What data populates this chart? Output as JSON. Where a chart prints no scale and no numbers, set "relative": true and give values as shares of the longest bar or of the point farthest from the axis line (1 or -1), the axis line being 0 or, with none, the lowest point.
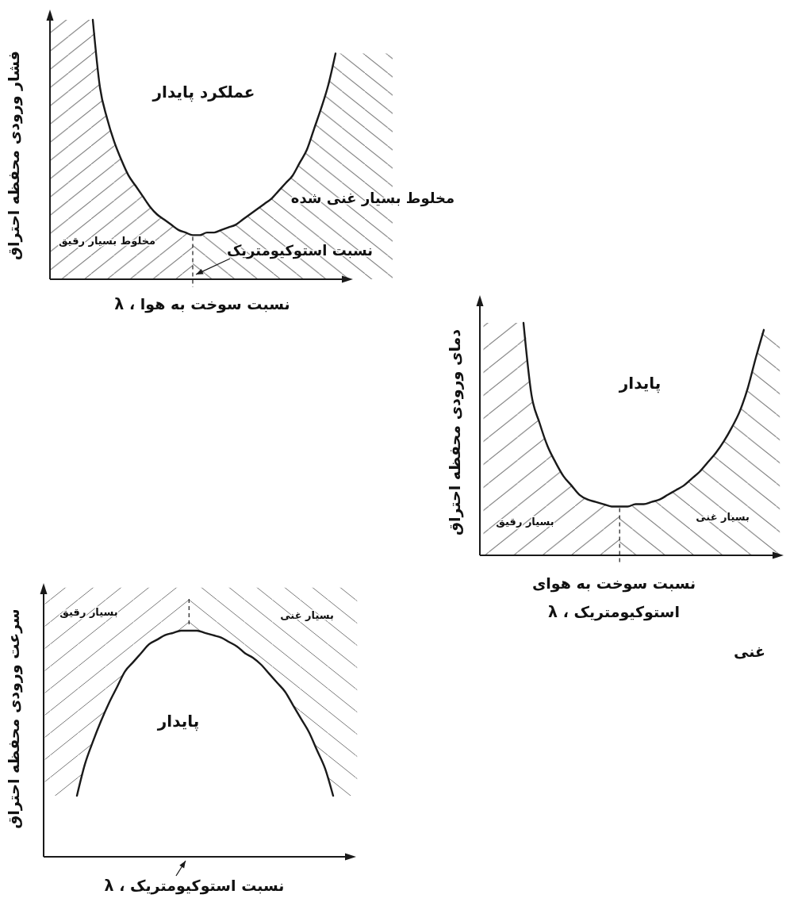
{
  "chart_data": [
    {
      "type": "line",
      "relative": true,
      "ylabel": "فشار ورودی محفظه احتراق",
      "xlabel": "نسبت سوخت به هوا ، λ",
      "annotations": [
        "عملکرد پایدار",
        "مخلوط بسیار غنی شده",
        "مخلوط بسیار رقیق",
        "نسبت استوکیومتریک"
      ],
      "categories": [
        null,
        null,
        null,
        null,
        null,
        null,
        null,
        null,
        null,
        null,
        null,
        null,
        null,
        null,
        null,
        null,
        null,
        null,
        null,
        null,
        null,
        null,
        null,
        null,
        null,
        null,
        null,
        null,
        null,
        null,
        null,
        null,
        null,
        null,
        null,
        null,
        null,
        null,
        null,
        null,
        null,
        null,
        null,
        null,
        null,
        null,
        null,
        null,
        null
      ],
      "series": [
        {
          "type": "area",
          "color": "#7a7a7a",
          "values": [
            1,
            1,
            1,
            1,
            1,
            1,
            1,
            0.74,
            0.62,
            0.53,
            0.46,
            0.4,
            0.36,
            0.32,
            0.28,
            0.25,
            0.23,
            0.21,
            0.19,
            0.18,
            0.17,
            null,
            null,
            null,
            null,
            null,
            null,
            null,
            null,
            null,
            null,
            null,
            null,
            null,
            null,
            null,
            null,
            null,
            null,
            null,
            null,
            null,
            null,
            null,
            null,
            null,
            null,
            null,
            null
          ]
        },
        {
          "type": "area",
          "color": "#7a7a7a",
          "values": [
            null,
            null,
            null,
            null,
            null,
            null,
            null,
            null,
            null,
            null,
            null,
            null,
            null,
            null,
            null,
            null,
            null,
            null,
            null,
            null,
            0.17,
            0.17,
            0.18,
            0.18,
            0.19,
            0.2,
            0.21,
            0.23,
            0.25,
            0.27,
            0.29,
            0.31,
            0.34,
            0.37,
            0.4,
            0.45,
            0.5,
            0.58,
            0.66,
            0.75,
            0.87,
            0.87,
            0.87,
            0.87,
            0.87,
            0.87,
            0.87,
            0.87,
            0.87
          ]
        },
        {
          "color": "#1a1a1a",
          "values": [
            null,
            null,
            null,
            null,
            null,
            null,
            1,
            0.74,
            0.62,
            0.53,
            0.46,
            0.4,
            0.36,
            0.32,
            0.28,
            0.25,
            0.23,
            0.21,
            0.19,
            0.18,
            0.17,
            0.17,
            0.18,
            0.18,
            0.19,
            0.2,
            0.21,
            0.23,
            0.25,
            0.27,
            0.29,
            0.31,
            0.34,
            0.37,
            0.4,
            0.45,
            0.5,
            0.58,
            0.66,
            0.75,
            0.87,
            null,
            null,
            null,
            null,
            null,
            null,
            null,
            null
          ]
        }
      ]
    },
    {
      "type": "line",
      "relative": true,
      "ylabel": "دمای ورودی محفظه احتراق",
      "xlabel": "نسبت سوخت به هوای\nاستوکیومتریک ، λ",
      "annotations": [
        "پایدار",
        "بسیار رقیق",
        "بسیار غنی",
        "غنی"
      ],
      "categories": [
        null,
        null,
        null,
        null,
        null,
        null,
        null,
        null,
        null,
        null,
        null,
        null,
        null,
        null,
        null,
        null,
        null,
        null,
        null,
        null,
        null,
        null,
        null,
        null,
        null,
        null,
        null,
        null,
        null,
        null,
        null,
        null,
        null,
        null,
        null,
        null,
        null,
        null
      ],
      "series": [
        {
          "type": "area",
          "color": "#7a7a7a",
          "values": [
            1,
            1,
            1,
            1,
            1,
            1,
            0.69,
            0.57,
            0.47,
            0.4,
            0.34,
            0.3,
            0.26,
            0.24,
            0.23,
            0.22,
            0.21,
            0.21,
            null,
            null,
            null,
            null,
            null,
            null,
            null,
            null,
            null,
            null,
            null,
            null,
            null,
            null,
            null,
            null,
            null,
            null,
            null,
            null
          ]
        },
        {
          "type": "area",
          "color": "#7a7a7a",
          "values": [
            null,
            null,
            null,
            null,
            null,
            null,
            null,
            null,
            null,
            null,
            null,
            null,
            null,
            null,
            null,
            null,
            null,
            0.21,
            0.21,
            0.22,
            0.22,
            0.23,
            0.24,
            0.26,
            0.28,
            0.3,
            0.33,
            0.36,
            0.4,
            0.44,
            0.49,
            0.55,
            0.62,
            0.72,
            0.85,
            0.97,
            0.97,
            0.97
          ]
        },
        {
          "color": "#1a1a1a",
          "values": [
            null,
            null,
            null,
            null,
            null,
            1,
            0.69,
            0.57,
            0.47,
            0.4,
            0.34,
            0.3,
            0.26,
            0.24,
            0.23,
            0.22,
            0.21,
            0.21,
            0.21,
            0.22,
            0.22,
            0.23,
            0.24,
            0.26,
            0.28,
            0.3,
            0.33,
            0.36,
            0.4,
            0.44,
            0.49,
            0.55,
            0.62,
            0.72,
            0.85,
            0.97,
            null,
            null
          ]
        }
      ]
    },
    {
      "type": "line",
      "relative": true,
      "ylabel": "سرعت ورودی محفظه احتراق",
      "xlabel": "نسبت استوکیومتریک ، λ",
      "annotations": [
        "بسیار رقیق",
        "بسیار غنی",
        "پایدار"
      ],
      "categories": [
        null,
        null,
        null,
        null,
        null,
        null,
        null,
        null,
        null,
        null,
        null,
        null,
        null,
        null,
        null,
        null,
        null,
        null,
        null,
        null,
        null,
        null,
        null,
        null,
        null,
        null,
        null,
        null,
        null,
        null,
        null,
        null,
        null,
        null,
        null,
        null,
        null,
        null,
        null,
        null
      ],
      "series": [
        {
          "color": "#1a1a1a",
          "values": [
            null,
            null,
            null,
            null,
            0.27,
            0.41,
            0.51,
            0.6,
            0.68,
            0.75,
            0.82,
            0.86,
            0.9,
            0.94,
            0.96,
            0.98,
            0.99,
            1,
            1,
            1,
            0.99,
            0.98,
            0.97,
            0.95,
            0.93,
            0.9,
            0.88,
            0.85,
            0.81,
            0.77,
            0.73,
            0.67,
            0.61,
            0.55,
            0.47,
            0.39,
            0.27,
            null,
            null,
            null
          ],
          "lower": [
            0.27,
            0.27,
            0.27,
            0.27,
            0.27,
            0.41,
            0.51,
            0.6,
            0.68,
            0.75,
            0.82,
            0.86,
            0.9,
            0.94,
            0.96,
            0.98,
            0.99,
            1,
            1,
            1,
            0.99,
            0.98,
            0.97,
            0.95,
            0.93,
            0.9,
            0.88,
            0.85,
            0.81,
            0.77,
            0.73,
            0.67,
            0.61,
            0.55,
            0.47,
            0.39,
            0.27,
            0.27,
            0.27,
            0.27
          ],
          "upper": [
            1.19,
            1.19,
            1.19,
            1.19,
            1.19,
            1.19,
            1.19,
            1.19,
            1.19,
            1.19,
            1.19,
            1.19,
            1.19,
            1.19,
            1.19,
            1.19,
            1.19,
            1.19,
            1.19,
            1.19,
            1.19,
            1.19,
            1.19,
            1.19,
            1.19,
            1.19,
            1.19,
            1.19,
            1.19,
            1.19,
            1.19,
            1.19,
            1.19,
            1.19,
            1.19,
            1.19,
            1.19,
            1.19,
            1.19,
            1.19
          ]
        }
      ]
    }
  ]
}
